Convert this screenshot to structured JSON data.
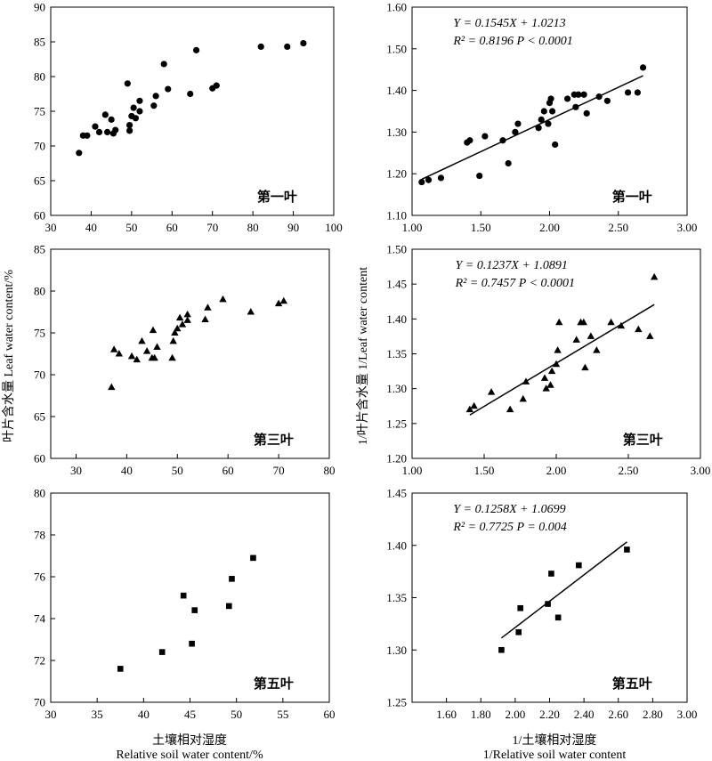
{
  "figure": {
    "ylabel_left": "叶片含水量 Leaf water content/%",
    "ylabel_right": "1/叶片含水量 1/Leaf water content",
    "xlabel_left_cn": "土壤相对湿度",
    "xlabel_left_en": "Relative soil water content/%",
    "xlabel_right_cn": "1/土壤相对湿度",
    "xlabel_right_en": "1/Relative soil water content"
  },
  "chart_data": [
    {
      "id": "left-1",
      "type": "scatter",
      "marker": "circle",
      "panel_label": "第一叶",
      "xlim": [
        30,
        100
      ],
      "ylim": [
        60,
        90
      ],
      "xticks": [
        "30",
        "40",
        "50",
        "60",
        "70",
        "80",
        "90",
        "100"
      ],
      "yticks": [
        "60",
        "65",
        "70",
        "75",
        "80",
        "85",
        "90"
      ],
      "x": [
        37,
        38,
        39,
        41,
        42,
        43.5,
        44,
        45,
        45.5,
        46,
        49,
        49.5,
        49.5,
        50,
        50.5,
        51,
        52,
        52,
        55.5,
        56,
        58,
        59,
        64.5,
        66,
        70,
        71,
        82,
        88.5,
        92.5
      ],
      "y": [
        69,
        71.5,
        71.5,
        72.8,
        72,
        74.5,
        72,
        73.8,
        71.8,
        72.3,
        79,
        72.2,
        73,
        74.3,
        75.5,
        74,
        76.5,
        75,
        75.8,
        77.2,
        81.8,
        78.2,
        77.5,
        83.8,
        78.3,
        78.7,
        84.3,
        84.3,
        84.8
      ]
    },
    {
      "id": "right-1",
      "type": "scatter",
      "marker": "circle",
      "panel_label": "第一叶",
      "equation": "Y = 0.1545X + 1.0213",
      "stats": "R² = 0.8196   P < 0.0001",
      "xlim": [
        1.0,
        3.0
      ],
      "ylim": [
        1.1,
        1.6
      ],
      "xticks": [
        "1.00",
        "1.50",
        "2.00",
        "2.50",
        "3.00"
      ],
      "yticks": [
        "1.10",
        "1.20",
        "1.30",
        "1.40",
        "1.50",
        "1.60"
      ],
      "x": [
        1.07,
        1.12,
        1.21,
        1.4,
        1.42,
        1.49,
        1.53,
        1.66,
        1.7,
        1.75,
        1.77,
        1.92,
        1.94,
        1.96,
        1.99,
        2.0,
        2.01,
        2.02,
        2.04,
        2.13,
        2.18,
        2.19,
        2.21,
        2.25,
        2.27,
        2.36,
        2.42,
        2.57,
        2.64,
        2.68
      ],
      "y": [
        1.18,
        1.185,
        1.19,
        1.275,
        1.28,
        1.195,
        1.29,
        1.28,
        1.225,
        1.3,
        1.32,
        1.31,
        1.33,
        1.35,
        1.32,
        1.37,
        1.38,
        1.35,
        1.27,
        1.38,
        1.39,
        1.36,
        1.39,
        1.39,
        1.345,
        1.385,
        1.375,
        1.395,
        1.395,
        1.455
      ],
      "fit": {
        "slope": 0.1545,
        "intercept": 1.0213,
        "x_range": [
          1.07,
          2.68
        ]
      }
    },
    {
      "id": "left-3",
      "type": "scatter",
      "marker": "triangle",
      "panel_label": "第三叶",
      "xlim": [
        25,
        80
      ],
      "ylim": [
        60,
        85
      ],
      "xticks": [
        "30",
        "40",
        "50",
        "60",
        "70",
        "80"
      ],
      "yticks": [
        "60",
        "65",
        "70",
        "75",
        "80",
        "85"
      ],
      "x": [
        37,
        37.5,
        38.5,
        41,
        42,
        43,
        44,
        45,
        45.2,
        45.5,
        46,
        49,
        49.2,
        49.5,
        50,
        50.5,
        51,
        52,
        52,
        55.5,
        56,
        59,
        64.5,
        70,
        71
      ],
      "y": [
        68.5,
        73,
        72.5,
        72.2,
        71.8,
        74,
        72.8,
        72,
        75.3,
        72,
        73.3,
        72,
        74,
        75,
        75.5,
        76.8,
        76,
        77.2,
        76.5,
        76.6,
        78,
        79,
        77.5,
        78.5,
        78.8
      ]
    },
    {
      "id": "right-3",
      "type": "scatter",
      "marker": "triangle",
      "panel_label": "第三叶",
      "equation": "Y = 0.1237X + 1.0891",
      "stats": "R² = 0.7457   P < 0.0001",
      "xlim": [
        1.0,
        3.0
      ],
      "ylim": [
        1.2,
        1.5
      ],
      "xticks": [
        "1.00",
        "1.50",
        "2.00",
        "2.50",
        "3.00"
      ],
      "yticks": [
        "1.20",
        "1.25",
        "1.30",
        "1.35",
        "1.40",
        "1.45",
        "1.50"
      ],
      "x": [
        1.4,
        1.43,
        1.55,
        1.68,
        1.77,
        1.79,
        1.92,
        1.93,
        1.96,
        1.97,
        2.0,
        2.01,
        2.02,
        2.14,
        2.17,
        2.19,
        2.2,
        2.24,
        2.28,
        2.38,
        2.45,
        2.57,
        2.65,
        2.68
      ],
      "y": [
        1.27,
        1.275,
        1.295,
        1.27,
        1.285,
        1.31,
        1.315,
        1.3,
        1.305,
        1.325,
        1.335,
        1.355,
        1.395,
        1.37,
        1.395,
        1.395,
        1.33,
        1.375,
        1.355,
        1.395,
        1.39,
        1.385,
        1.375,
        1.46
      ],
      "fit": {
        "slope": 0.1237,
        "intercept": 1.0891,
        "x_range": [
          1.4,
          2.68
        ]
      }
    },
    {
      "id": "left-5",
      "type": "scatter",
      "marker": "square",
      "panel_label": "第五叶",
      "xlim": [
        30,
        60
      ],
      "ylim": [
        70,
        80
      ],
      "xticks": [
        "30",
        "35",
        "40",
        "45",
        "50",
        "55",
        "60"
      ],
      "yticks": [
        "70",
        "72",
        "74",
        "76",
        "78",
        "80"
      ],
      "x": [
        37.5,
        42,
        44.3,
        45.2,
        45.5,
        49.2,
        49.5,
        51.8
      ],
      "y": [
        71.6,
        72.4,
        75.1,
        72.8,
        74.4,
        74.6,
        75.9,
        76.9
      ]
    },
    {
      "id": "right-5",
      "type": "scatter",
      "marker": "square",
      "panel_label": "第五叶",
      "equation": "Y = 0.1258X + 1.0699",
      "stats": "R² = 0.7725   P = 0.004",
      "xlim": [
        1.4,
        3.0
      ],
      "ylim": [
        1.25,
        1.45
      ],
      "xticks": [
        "1.60",
        "1.80",
        "2.00",
        "2.20",
        "2.40",
        "2.60",
        "2.80",
        "3.00"
      ],
      "yticks": [
        "1.25",
        "1.30",
        "1.35",
        "1.40",
        "1.45"
      ],
      "x": [
        1.92,
        2.02,
        2.03,
        2.19,
        2.21,
        2.25,
        2.37,
        2.65
      ],
      "y": [
        1.3,
        1.317,
        1.34,
        1.344,
        1.373,
        1.331,
        1.381,
        1.396
      ],
      "fit": {
        "slope": 0.1258,
        "intercept": 1.0699,
        "x_range": [
          1.92,
          2.65
        ]
      }
    }
  ]
}
